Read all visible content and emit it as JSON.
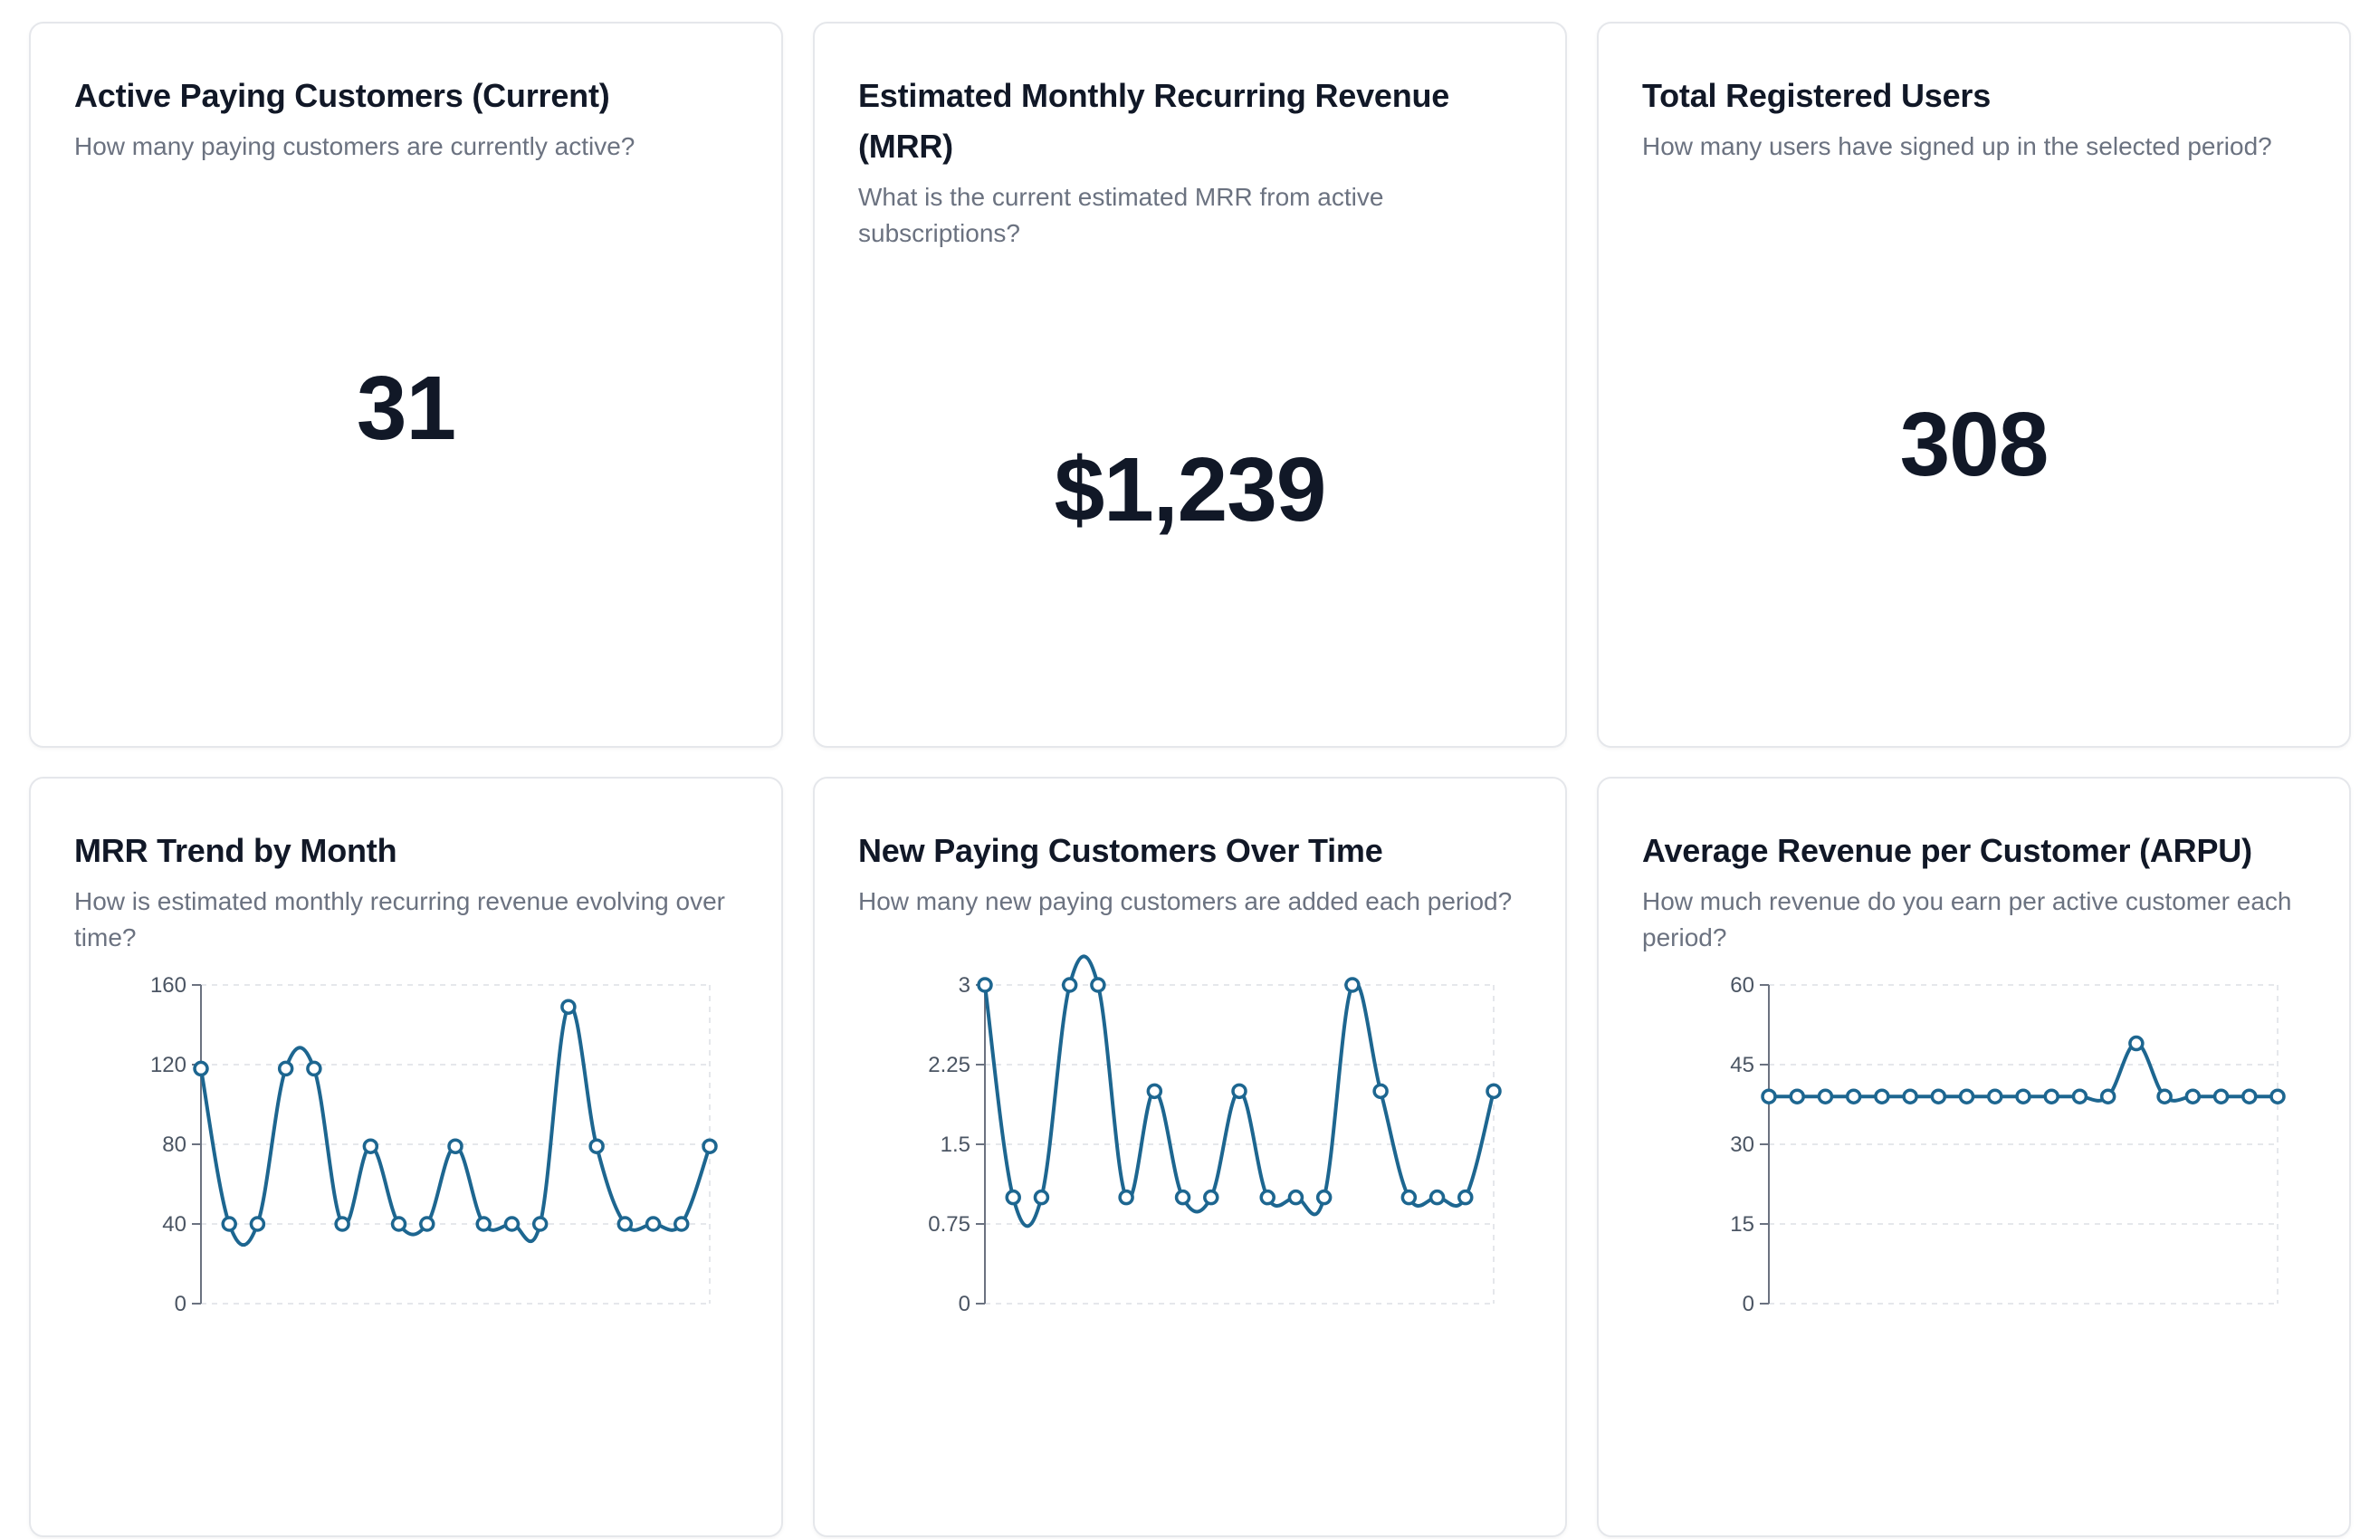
{
  "kpis": [
    {
      "title": "Active Paying Customers (Current)",
      "subtitle": "How many paying customers are currently active?",
      "value": "31"
    },
    {
      "title": "Estimated Monthly Recurring Revenue (MRR)",
      "subtitle": "What is the current estimated MRR from active subscriptions?",
      "value": "$1,239"
    },
    {
      "title": "Total Registered Users",
      "subtitle": "How many users have signed up in the selected period?",
      "value": "308"
    }
  ],
  "charts": [
    {
      "title": "MRR Trend by Month",
      "subtitle": "How is estimated monthly recurring revenue evolving over time?"
    },
    {
      "title": "New Paying Customers Over Time",
      "subtitle": "How many new paying customers are added each period?"
    },
    {
      "title": "Average Revenue per Customer (ARPU)",
      "subtitle": "How much revenue do you earn per active customer each period?"
    }
  ],
  "colors": {
    "series": "#1d6690",
    "text": "#111827",
    "muted": "#6b7280"
  },
  "chart_data": [
    {
      "type": "line",
      "title": "",
      "ylim": [
        0,
        160
      ],
      "yticks": [
        "0",
        "40",
        "80",
        "120",
        "160"
      ],
      "grid": true,
      "values": [
        118,
        40,
        40,
        118,
        118,
        40,
        79,
        40,
        40,
        79,
        40,
        40,
        40,
        149,
        79,
        40,
        40,
        40,
        79
      ]
    },
    {
      "type": "line",
      "title": "",
      "ylim": [
        0,
        3
      ],
      "yticks": [
        "0",
        "0.75",
        "1.5",
        "2.25",
        "3"
      ],
      "grid": true,
      "values": [
        3,
        1,
        1,
        3,
        3,
        1,
        2,
        1,
        1,
        2,
        1,
        1,
        1,
        3,
        2,
        1,
        1,
        1,
        2
      ]
    },
    {
      "type": "line",
      "title": "",
      "ylim": [
        0,
        60
      ],
      "yticks": [
        "0",
        "15",
        "30",
        "45",
        "60"
      ],
      "grid": true,
      "values": [
        39,
        39,
        39,
        39,
        39,
        39,
        39,
        39,
        39,
        39,
        39,
        39,
        39,
        49,
        39,
        39,
        39,
        39,
        39
      ]
    }
  ]
}
